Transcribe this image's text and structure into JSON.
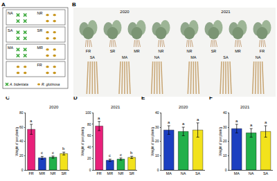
{
  "diagram": {
    "panel": "A",
    "plots": [
      {
        "left": "NA",
        "right": "NR"
      },
      {
        "left": "SA",
        "right": "SR"
      },
      {
        "left": "MA",
        "right": "MR"
      },
      {
        "right": "FR"
      }
    ],
    "legend": [
      {
        "marker": "cross",
        "label": "A. bidentata"
      },
      {
        "marker": "dot",
        "label": "R. glutinosa"
      }
    ]
  },
  "photos": {
    "panel": "B",
    "years": [
      {
        "label": "2020",
        "top": [
          "FR",
          "SR",
          "MR",
          "NR"
        ],
        "bottom": [
          "SA",
          "MA",
          "NA"
        ]
      },
      {
        "label": "2021",
        "top": [
          "NR",
          "SR",
          "MR",
          "FR"
        ],
        "bottom": [
          "MA",
          "SA",
          "NA"
        ]
      }
    ]
  },
  "chart_data": [
    {
      "type": "bar",
      "panel": "C",
      "title": "2020",
      "y_label": "Weight of per plant/g",
      "categories": [
        "FR",
        "MR",
        "NR",
        "SR"
      ],
      "values": [
        57,
        17,
        18,
        23
      ],
      "errors": [
        7,
        2,
        1.5,
        2
      ],
      "annotations": [
        "a",
        "c",
        "c",
        "b"
      ],
      "colors": [
        "#e8207a",
        "#1c3fc0",
        "#22b04a",
        "#f2e21c"
      ],
      "ylim": [
        0,
        80
      ],
      "yticks": [
        0,
        20,
        40,
        60,
        80
      ]
    },
    {
      "type": "bar",
      "panel": "D",
      "title": "2021",
      "y_label": "Weight of per plant/g",
      "categories": [
        "FR",
        "MR",
        "NR",
        "SR"
      ],
      "values": [
        77,
        17,
        19,
        22
      ],
      "errors": [
        8,
        2,
        2,
        2
      ],
      "annotations": [
        "a",
        "c",
        "c",
        "b"
      ],
      "colors": [
        "#e8207a",
        "#1c3fc0",
        "#22b04a",
        "#f2e21c"
      ],
      "ylim": [
        0,
        100
      ],
      "yticks": [
        0,
        20,
        40,
        60,
        80,
        100
      ]
    },
    {
      "type": "bar",
      "panel": "E",
      "title": "2020",
      "y_label": "Weight of per plant/g",
      "categories": [
        "MA",
        "NA",
        "SA"
      ],
      "values": [
        28,
        27,
        28
      ],
      "errors": [
        3,
        3,
        5
      ],
      "annotations": [
        "a",
        "a",
        "a"
      ],
      "colors": [
        "#1c3fc0",
        "#22b04a",
        "#f2e21c"
      ],
      "ylim": [
        0,
        40
      ],
      "yticks": [
        0,
        10,
        20,
        30,
        40
      ]
    },
    {
      "type": "bar",
      "panel": "F",
      "title": "2021",
      "y_label": "Weight of per plant/g",
      "categories": [
        "MA",
        "NA",
        "SA"
      ],
      "values": [
        29,
        26,
        27
      ],
      "errors": [
        3,
        3,
        4
      ],
      "annotations": [
        "a",
        "a",
        "a"
      ],
      "colors": [
        "#1c3fc0",
        "#22b04a",
        "#f2e21c"
      ],
      "ylim": [
        0,
        40
      ],
      "yticks": [
        0,
        10,
        20,
        30,
        40
      ]
    }
  ]
}
